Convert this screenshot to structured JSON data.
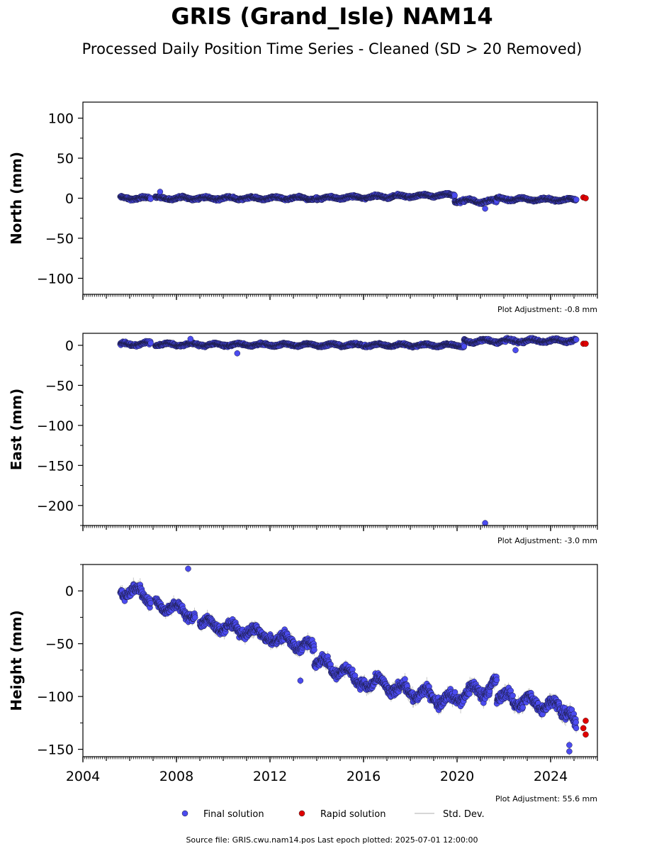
{
  "title": "GRIS (Grand_Isle) NAM14",
  "subtitle": "Processed Daily Position Time Series - Cleaned (SD > 20 Removed)",
  "footer": "Source file: GRIS.cwu.nam14.pos  Last epoch plotted: 2025-07-01 12:00:00",
  "colors": {
    "final": "#4b4bf0",
    "rapid": "#e00000",
    "stddev": "#c8c8c8",
    "axis": "#000000"
  },
  "chart_data": [
    {
      "type": "scatter",
      "ylabel": "North (mm)",
      "xlim": [
        2004.0,
        2026.0
      ],
      "ylim": [
        -120,
        120
      ],
      "yticks": [
        -100,
        -50,
        0,
        50,
        100
      ],
      "xticks": [
        2004,
        2008,
        2012,
        2016,
        2020,
        2024
      ],
      "show_xticklabels": false,
      "adjustment": "Plot Adjustment: -0.8 mm",
      "series": [
        {
          "name": "Final solution",
          "segments": [
            {
              "x0": 2005.6,
              "x1": 2006.9,
              "y0": 0,
              "y1": 0,
              "amp": 2.5
            },
            {
              "x0": 2007.1,
              "x1": 2014.0,
              "y0": 0,
              "y1": 0,
              "amp": 2.5
            },
            {
              "x0": 2014.0,
              "x1": 2019.9,
              "y0": 0,
              "y1": 4,
              "amp": 2.5
            },
            {
              "x0": 2019.9,
              "x1": 2021.7,
              "y0": -3,
              "y1": -4,
              "amp": 3
            },
            {
              "x0": 2021.7,
              "x1": 2025.1,
              "y0": -1,
              "y1": -2,
              "amp": 2.5
            }
          ],
          "outliers": [
            [
              2007.3,
              8
            ],
            [
              2021.2,
              -13
            ]
          ]
        },
        {
          "name": "Rapid solution",
          "points": [
            [
              2025.4,
              1
            ],
            [
              2025.5,
              0
            ]
          ]
        }
      ]
    },
    {
      "type": "scatter",
      "ylabel": "East (mm)",
      "xlim": [
        2004.0,
        2026.0
      ],
      "ylim": [
        -225,
        15
      ],
      "yticks": [
        -200,
        -150,
        -100,
        -50,
        0
      ],
      "xticks": [
        2004,
        2008,
        2012,
        2016,
        2020,
        2024
      ],
      "show_xticklabels": false,
      "adjustment": "Plot Adjustment: -3.0 mm",
      "series": [
        {
          "name": "Final solution",
          "segments": [
            {
              "x0": 2005.6,
              "x1": 2006.9,
              "y0": 1,
              "y1": 2,
              "amp": 3
            },
            {
              "x0": 2007.1,
              "x1": 2020.3,
              "y0": 1,
              "y1": 0,
              "amp": 2.5
            },
            {
              "x0": 2020.3,
              "x1": 2025.1,
              "y0": 5,
              "y1": 6,
              "amp": 3
            }
          ],
          "outliers": [
            [
              2010.6,
              -10
            ],
            [
              2021.2,
              -222
            ],
            [
              2022.5,
              -6
            ],
            [
              2008.6,
              8
            ]
          ]
        },
        {
          "name": "Rapid solution",
          "points": [
            [
              2025.4,
              2
            ],
            [
              2025.5,
              2
            ]
          ]
        }
      ]
    },
    {
      "type": "scatter",
      "ylabel": "Height (mm)",
      "xlim": [
        2004.0,
        2026.0
      ],
      "ylim": [
        -157,
        25
      ],
      "yticks": [
        -150,
        -100,
        -50,
        0
      ],
      "xticks": [
        2004,
        2008,
        2012,
        2016,
        2020,
        2024
      ],
      "show_xticklabels": true,
      "adjustment": "Plot Adjustment: 55.6 mm",
      "series": [
        {
          "name": "Final solution",
          "segments": [
            {
              "x0": 2005.6,
              "x1": 2006.9,
              "y0": 2,
              "y1": -5,
              "amp": 9
            },
            {
              "x0": 2007.1,
              "x1": 2008.8,
              "y0": -12,
              "y1": -22,
              "amp": 8
            },
            {
              "x0": 2009.0,
              "x1": 2012.0,
              "y0": -30,
              "y1": -42,
              "amp": 8
            },
            {
              "x0": 2012.0,
              "x1": 2013.9,
              "y0": -42,
              "y1": -55,
              "amp": 8
            },
            {
              "x0": 2013.9,
              "x1": 2016.0,
              "y0": -65,
              "y1": -85,
              "amp": 8
            },
            {
              "x0": 2016.0,
              "x1": 2019.9,
              "y0": -85,
              "y1": -105,
              "amp": 9
            },
            {
              "x0": 2019.9,
              "x1": 2021.7,
              "y0": -100,
              "y1": -90,
              "amp": 10
            },
            {
              "x0": 2021.7,
              "x1": 2024.4,
              "y0": -100,
              "y1": -110,
              "amp": 9
            },
            {
              "x0": 2024.4,
              "x1": 2025.1,
              "y0": -110,
              "y1": -130,
              "amp": 10
            }
          ],
          "outliers": [
            [
              2008.5,
              21
            ],
            [
              2013.3,
              -85
            ],
            [
              2024.8,
              -152
            ],
            [
              2024.8,
              -146
            ]
          ]
        },
        {
          "name": "Rapid solution",
          "points": [
            [
              2025.4,
              -130
            ],
            [
              2025.5,
              -123
            ],
            [
              2025.5,
              -136
            ]
          ]
        }
      ]
    }
  ],
  "legend": {
    "placement": "bottom-center",
    "items": [
      {
        "label": "Final solution",
        "kind": "final"
      },
      {
        "label": "Rapid solution",
        "kind": "rapid"
      },
      {
        "label": "Std. Dev.",
        "kind": "stddev"
      }
    ]
  }
}
